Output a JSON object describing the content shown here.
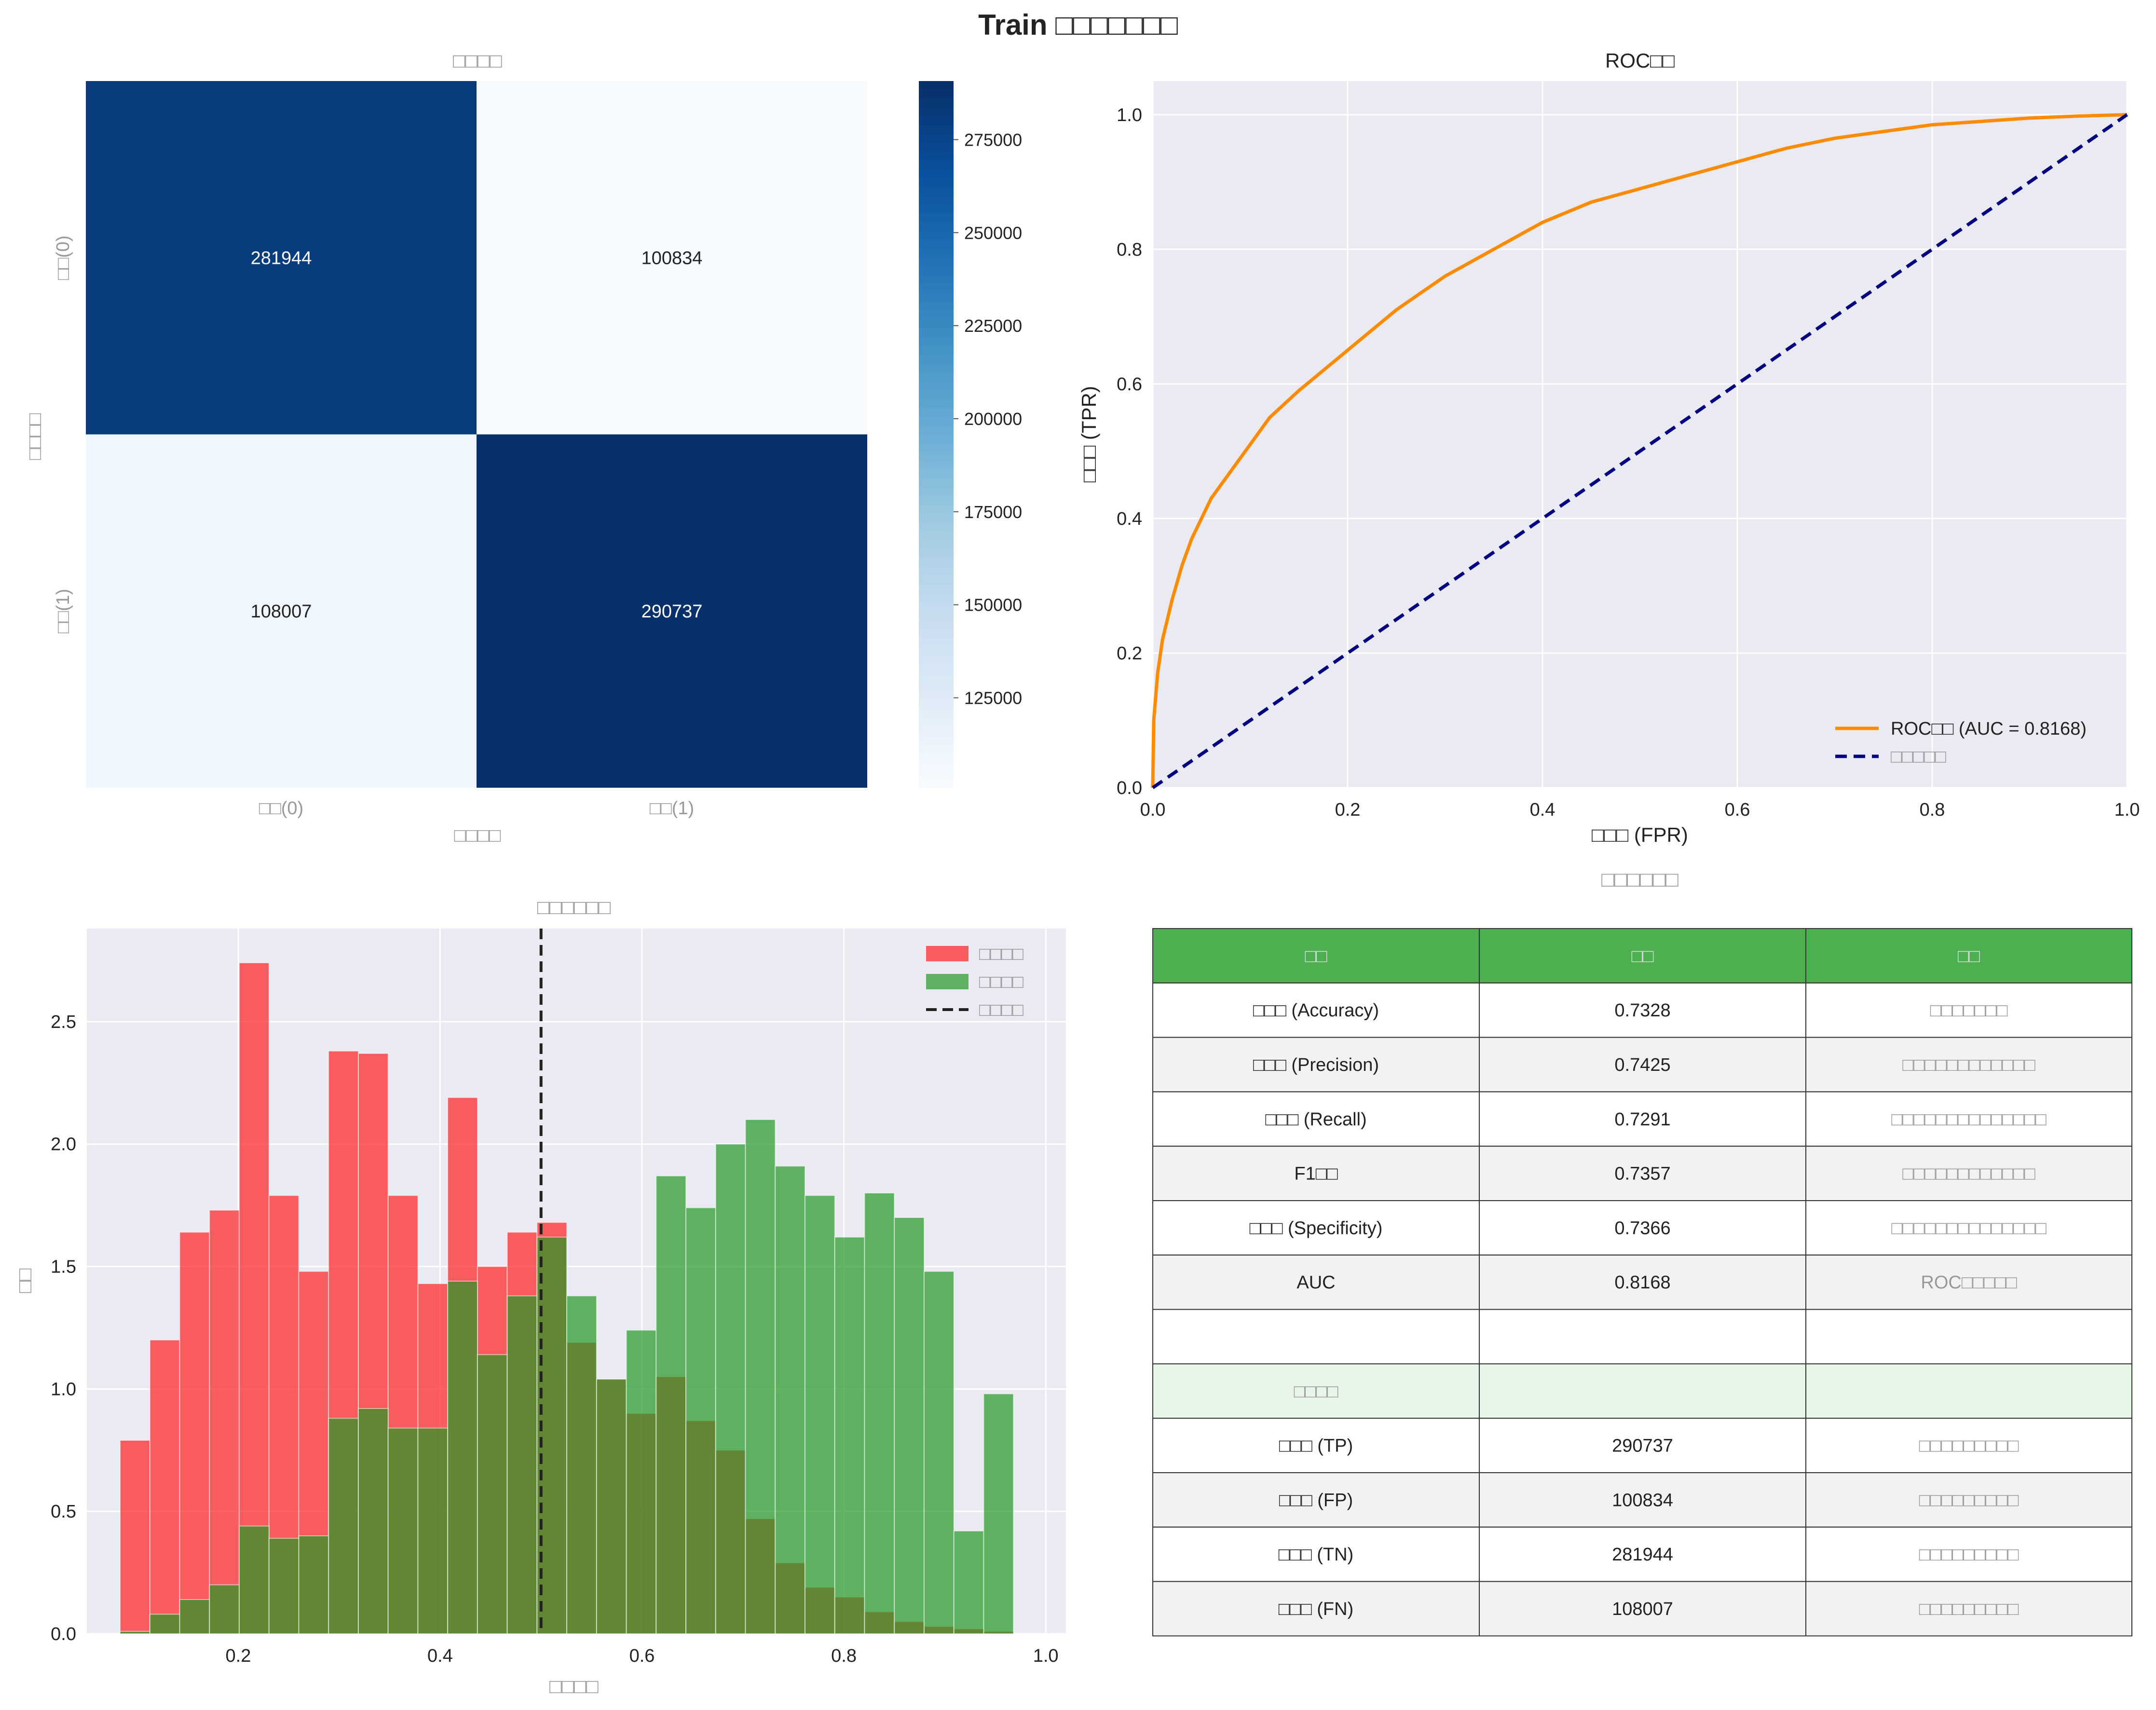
{
  "figure_title": "Train □□□□□□□",
  "colors": {
    "heat_low": "#f7fbff",
    "heat_high": "#08306b",
    "roc": "#ff8c00",
    "diag": "#000080",
    "neg_hist": "#ff2020",
    "pos_hist": "#229922",
    "table_header": "#4caf50",
    "table_section": "#e8f5e9",
    "panel_bg": "#eaeaf2"
  },
  "chart_data": [
    {
      "type": "heatmap",
      "title": "□□□□",
      "xlabel": "□□□□",
      "ylabel": "□□□□",
      "x_categories": [
        "□□(0)",
        "□□(1)"
      ],
      "y_categories": [
        "□□(0)",
        "□□(1)"
      ],
      "values": [
        [
          281944,
          100834
        ],
        [
          108007,
          290737
        ]
      ],
      "cell_labels": [
        [
          "281944",
          "100834"
        ],
        [
          "108007",
          "290737"
        ]
      ],
      "colorbar_ticks": [
        125000,
        150000,
        175000,
        200000,
        225000,
        250000,
        275000
      ],
      "colorbar_tick_labels": [
        "125000",
        "150000",
        "175000",
        "200000",
        "225000",
        "250000",
        "275000"
      ],
      "vmin": 100834,
      "vmax": 290737
    },
    {
      "type": "line",
      "title": "ROC□□",
      "xlabel": "□□□ (FPR)",
      "ylabel": "□□□ (TPR)",
      "xlim": [
        0,
        1
      ],
      "ylim": [
        0,
        1.05
      ],
      "x_ticks": [
        0,
        0.2,
        0.4,
        0.6,
        0.8,
        1.0
      ],
      "x_tick_labels": [
        "0.0",
        "0.2",
        "0.4",
        "0.6",
        "0.8",
        "1.0"
      ],
      "y_ticks": [
        0,
        0.2,
        0.4,
        0.6,
        0.8,
        1.0
      ],
      "y_tick_labels": [
        "0.0",
        "0.2",
        "0.4",
        "0.6",
        "0.8",
        "1.0"
      ],
      "grid": true,
      "legend_position": "lower-right",
      "series": [
        {
          "name": "ROC□□ (AUC = 0.8168)",
          "x": [
            0,
            0.001,
            0.005,
            0.01,
            0.02,
            0.03,
            0.04,
            0.05,
            0.06,
            0.08,
            0.1,
            0.12,
            0.15,
            0.2,
            0.25,
            0.3,
            0.35,
            0.4,
            0.45,
            0.5,
            0.55,
            0.6,
            0.65,
            0.7,
            0.75,
            0.8,
            0.85,
            0.9,
            0.95,
            1.0
          ],
          "y": [
            0,
            0.1,
            0.17,
            0.22,
            0.28,
            0.33,
            0.37,
            0.4,
            0.43,
            0.47,
            0.51,
            0.55,
            0.59,
            0.65,
            0.71,
            0.76,
            0.8,
            0.84,
            0.87,
            0.89,
            0.91,
            0.93,
            0.95,
            0.965,
            0.975,
            0.985,
            0.99,
            0.995,
            0.998,
            1.0
          ]
        },
        {
          "name": "□□□□□",
          "x": [
            0,
            1
          ],
          "y": [
            0,
            1
          ]
        }
      ]
    },
    {
      "type": "bar",
      "title": "□□□□□□",
      "xlabel": "□□□□",
      "ylabel": "□□",
      "xlim": [
        0.05,
        1.02
      ],
      "ylim": [
        0,
        2.88
      ],
      "bin_width": 0.0295,
      "x_ticks": [
        0.2,
        0.4,
        0.6,
        0.8,
        1.0
      ],
      "x_tick_labels": [
        "0.2",
        "0.4",
        "0.6",
        "0.8",
        "1.0"
      ],
      "y_ticks": [
        0,
        0.5,
        1.0,
        1.5,
        2.0,
        2.5
      ],
      "y_tick_labels": [
        "0.0",
        "0.5",
        "1.0",
        "1.5",
        "2.0",
        "2.5"
      ],
      "threshold": 0.5,
      "legend_position": "upper-right",
      "legend": [
        "□□□□",
        "□□□□",
        "□□□□"
      ],
      "series": [
        {
          "name": "□□□□",
          "x": [
            0.083,
            0.1125,
            0.142,
            0.1715,
            0.201,
            0.2305,
            0.26,
            0.2895,
            0.319,
            0.3485,
            0.378,
            0.4075,
            0.437,
            0.4665,
            0.496,
            0.5255,
            0.555,
            0.5845,
            0.614,
            0.6435,
            0.673,
            0.7025,
            0.732,
            0.7615,
            0.791,
            0.8205,
            0.85,
            0.8795,
            0.909,
            0.9385
          ],
          "values": [
            0.79,
            1.2,
            1.64,
            1.73,
            2.74,
            1.79,
            1.48,
            2.38,
            2.37,
            1.79,
            1.43,
            2.19,
            1.5,
            1.64,
            1.68,
            1.19,
            1.04,
            0.9,
            1.05,
            0.87,
            0.75,
            0.47,
            0.29,
            0.19,
            0.15,
            0.09,
            0.05,
            0.03,
            0.02,
            0.01
          ]
        },
        {
          "name": "□□□□",
          "x": [
            0.083,
            0.1125,
            0.142,
            0.1715,
            0.201,
            0.2305,
            0.26,
            0.2895,
            0.319,
            0.3485,
            0.378,
            0.4075,
            0.437,
            0.4665,
            0.496,
            0.5255,
            0.555,
            0.5845,
            0.614,
            0.6435,
            0.673,
            0.7025,
            0.732,
            0.7615,
            0.791,
            0.8205,
            0.85,
            0.8795,
            0.909,
            0.9385
          ],
          "values": [
            0.01,
            0.08,
            0.14,
            0.2,
            0.44,
            0.39,
            0.4,
            0.88,
            0.92,
            0.84,
            0.84,
            1.44,
            1.14,
            1.38,
            1.62,
            1.38,
            1.04,
            1.24,
            1.87,
            1.74,
            2.0,
            2.1,
            1.91,
            1.79,
            1.62,
            1.8,
            1.7,
            1.48,
            0.42,
            0.98
          ]
        }
      ]
    }
  ],
  "metrics_table": {
    "title": "□□□□□□",
    "headers": [
      "□□",
      "□□",
      "□□"
    ],
    "rows": [
      [
        "□□□ (Accuracy)",
        "0.7328",
        "□□□□□□□"
      ],
      [
        "□□□ (Precision)",
        "0.7425",
        "□□□□□□□□□□□□"
      ],
      [
        "□□□ (Recall)",
        "0.7291",
        "□□□□□□□□□□□□□□"
      ],
      [
        "F1□□",
        "0.7357",
        "□□□□□□□□□□□□"
      ],
      [
        "□□□ (Specificity)",
        "0.7366",
        "□□□□□□□□□□□□□□"
      ],
      [
        "AUC",
        "0.8168",
        "ROC□□□□□"
      ],
      [
        "",
        "",
        ""
      ],
      [
        "□□□□",
        "",
        ""
      ],
      [
        "□□□ (TP)",
        "290737",
        "□□□□□□□□□"
      ],
      [
        "□□□ (FP)",
        "100834",
        "□□□□□□□□□"
      ],
      [
        "□□□ (TN)",
        "281944",
        "□□□□□□□□□"
      ],
      [
        "□□□ (FN)",
        "108007",
        "□□□□□□□□□"
      ]
    ]
  }
}
